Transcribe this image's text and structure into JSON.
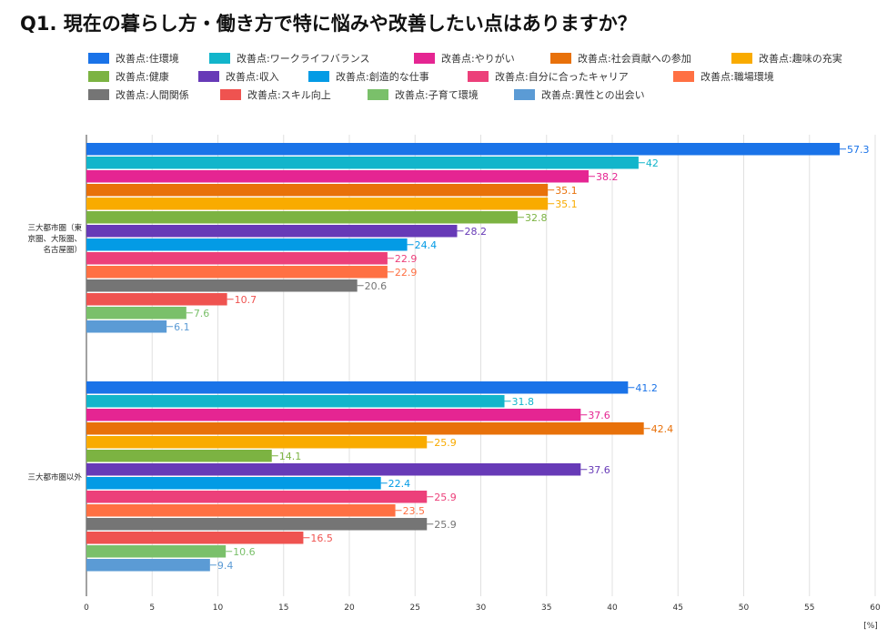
{
  "chart_data": {
    "type": "bar",
    "orientation": "horizontal",
    "title": "Q1. 現在の暮らし方・働き方で特に悩みや改善したい点はありますか？",
    "unit_label": "[%]",
    "xlim": [
      0,
      60
    ],
    "xticks": [
      0,
      5,
      10,
      15,
      20,
      25,
      30,
      35,
      40,
      45,
      50,
      55,
      60
    ],
    "grid": true,
    "legend_position": "top",
    "categories": [
      "三大都市圏（東京圏、大阪圏、名古屋圏）",
      "三大都市圏以外"
    ],
    "category_lines": [
      [
        "三大都市圏（東",
        "京圏、大阪圏、",
        "名古屋圏）"
      ],
      [
        "三大都市圏以外"
      ]
    ],
    "series": [
      {
        "name": "改善点:住環境",
        "color": "#1a73e8",
        "values": [
          57.3,
          41.2
        ]
      },
      {
        "name": "改善点:ワークライフバランス",
        "color": "#12b5cb",
        "values": [
          42,
          31.8
        ]
      },
      {
        "name": "改善点:やりがい",
        "color": "#e52592",
        "values": [
          38.2,
          37.6
        ]
      },
      {
        "name": "改善点:社会貢献への参加",
        "color": "#e8710a",
        "values": [
          35.1,
          42.4
        ]
      },
      {
        "name": "改善点:趣味の充実",
        "color": "#f9ab00",
        "values": [
          35.1,
          25.9
        ]
      },
      {
        "name": "改善点:健康",
        "color": "#7cb342",
        "values": [
          32.8,
          14.1
        ]
      },
      {
        "name": "改善点:収入",
        "color": "#673ab7",
        "values": [
          28.2,
          37.6
        ]
      },
      {
        "name": "改善点:創造的な仕事",
        "color": "#039be5",
        "values": [
          24.4,
          22.4
        ]
      },
      {
        "name": "改善点:自分に合ったキャリア",
        "color": "#ec407a",
        "values": [
          22.9,
          25.9
        ]
      },
      {
        "name": "改善点:職場環境",
        "color": "#ff7043",
        "values": [
          22.9,
          23.5
        ]
      },
      {
        "name": "改善点:人間関係",
        "color": "#757575",
        "values": [
          20.6,
          25.9
        ]
      },
      {
        "name": "改善点:スキル向上",
        "color": "#ef5350",
        "values": [
          10.7,
          16.5
        ]
      },
      {
        "name": "改善点:子育て環境",
        "color": "#7ac06a",
        "values": [
          7.6,
          10.6
        ]
      },
      {
        "name": "改善点:異性との出会い",
        "color": "#5b9bd5",
        "values": [
          6.1,
          9.4
        ]
      }
    ]
  }
}
